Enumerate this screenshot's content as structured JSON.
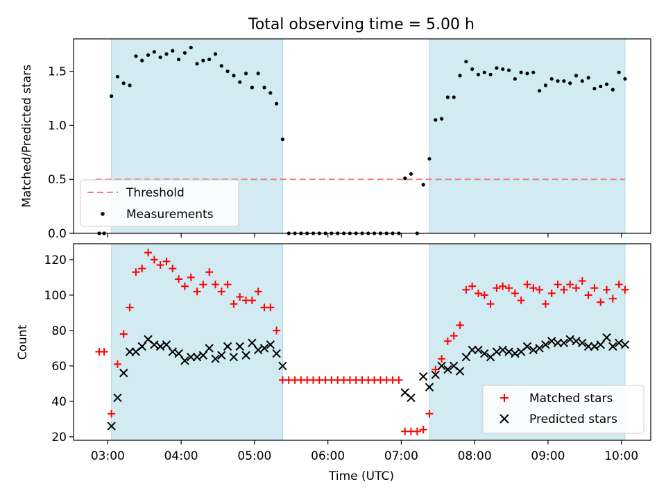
{
  "title": "Total observing time = 5.00 h",
  "colors": {
    "band": "#add8e6",
    "threshold": "#f08080",
    "measurement": "#000000",
    "matched": "#ff0000",
    "predicted": "#000000"
  },
  "chart_data": [
    {
      "type": "scatter",
      "ylabel": "Matched/Predicted stars",
      "xlim": [
        "02:32",
        "10:24"
      ],
      "ylim": [
        0,
        1.8
      ],
      "yticks": [
        0.0,
        0.5,
        1.0,
        1.5
      ],
      "ytick_labels": [
        "0.0",
        "0.5",
        "1.0",
        "1.5"
      ],
      "shaded_intervals": [
        [
          "03:03",
          "05:23"
        ],
        [
          "07:23",
          "10:03"
        ]
      ],
      "threshold": {
        "label": "Threshold",
        "value": 0.5,
        "x_range": [
          "02:50",
          "10:03"
        ]
      },
      "legend": {
        "position": "lower-left",
        "entries": [
          "Threshold",
          "Measurements"
        ]
      },
      "series": [
        {
          "name": "Measurements",
          "marker": "dot",
          "points": [
            [
              "02:53",
              0.0
            ],
            [
              "02:57",
              0.0
            ],
            [
              "03:03",
              1.27
            ],
            [
              "03:08",
              1.45
            ],
            [
              "03:13",
              1.39
            ],
            [
              "03:18",
              1.37
            ],
            [
              "03:23",
              1.64
            ],
            [
              "03:28",
              1.6
            ],
            [
              "03:33",
              1.65
            ],
            [
              "03:38",
              1.68
            ],
            [
              "03:43",
              1.63
            ],
            [
              "03:48",
              1.66
            ],
            [
              "03:53",
              1.69
            ],
            [
              "03:58",
              1.61
            ],
            [
              "04:03",
              1.67
            ],
            [
              "04:08",
              1.72
            ],
            [
              "04:13",
              1.57
            ],
            [
              "04:18",
              1.6
            ],
            [
              "04:23",
              1.61
            ],
            [
              "04:28",
              1.66
            ],
            [
              "04:33",
              1.55
            ],
            [
              "04:38",
              1.5
            ],
            [
              "04:43",
              1.46
            ],
            [
              "04:48",
              1.4
            ],
            [
              "04:53",
              1.48
            ],
            [
              "04:58",
              1.35
            ],
            [
              "05:03",
              1.48
            ],
            [
              "05:08",
              1.35
            ],
            [
              "05:13",
              1.3
            ],
            [
              "05:18",
              1.2
            ],
            [
              "05:23",
              0.87
            ],
            [
              "05:28",
              0.0
            ],
            [
              "05:33",
              0.0
            ],
            [
              "05:38",
              0.0
            ],
            [
              "05:43",
              0.0
            ],
            [
              "05:48",
              0.0
            ],
            [
              "05:53",
              0.0
            ],
            [
              "05:58",
              0.0
            ],
            [
              "06:03",
              0.0
            ],
            [
              "06:08",
              0.0
            ],
            [
              "06:13",
              0.0
            ],
            [
              "06:18",
              0.0
            ],
            [
              "06:23",
              0.0
            ],
            [
              "06:28",
              0.0
            ],
            [
              "06:33",
              0.0
            ],
            [
              "06:38",
              0.0
            ],
            [
              "06:43",
              0.0
            ],
            [
              "06:48",
              0.0
            ],
            [
              "06:53",
              0.0
            ],
            [
              "06:58",
              0.0
            ],
            [
              "07:03",
              0.51
            ],
            [
              "07:08",
              0.55
            ],
            [
              "07:13",
              0.0
            ],
            [
              "07:18",
              0.45
            ],
            [
              "07:23",
              0.69
            ],
            [
              "07:28",
              1.05
            ],
            [
              "07:33",
              1.06
            ],
            [
              "07:38",
              1.26
            ],
            [
              "07:43",
              1.26
            ],
            [
              "07:48",
              1.46
            ],
            [
              "07:53",
              1.59
            ],
            [
              "07:58",
              1.52
            ],
            [
              "08:03",
              1.47
            ],
            [
              "08:08",
              1.49
            ],
            [
              "08:13",
              1.47
            ],
            [
              "08:18",
              1.53
            ],
            [
              "08:23",
              1.52
            ],
            [
              "08:28",
              1.51
            ],
            [
              "08:33",
              1.43
            ],
            [
              "08:38",
              1.49
            ],
            [
              "08:43",
              1.48
            ],
            [
              "08:48",
              1.49
            ],
            [
              "08:53",
              1.32
            ],
            [
              "08:58",
              1.37
            ],
            [
              "09:03",
              1.43
            ],
            [
              "09:08",
              1.41
            ],
            [
              "09:13",
              1.41
            ],
            [
              "09:18",
              1.39
            ],
            [
              "09:23",
              1.46
            ],
            [
              "09:28",
              1.41
            ],
            [
              "09:33",
              1.44
            ],
            [
              "09:38",
              1.34
            ],
            [
              "09:43",
              1.36
            ],
            [
              "09:48",
              1.38
            ],
            [
              "09:53",
              1.33
            ],
            [
              "09:58",
              1.49
            ],
            [
              "10:03",
              1.43
            ]
          ]
        }
      ]
    },
    {
      "type": "scatter",
      "xlabel": "Time (UTC)",
      "ylabel": "Count",
      "xlim": [
        "02:32",
        "10:24"
      ],
      "ylim": [
        18,
        129
      ],
      "xticks": [
        "03:00",
        "04:00",
        "05:00",
        "06:00",
        "07:00",
        "08:00",
        "09:00",
        "10:00"
      ],
      "yticks": [
        20,
        40,
        60,
        80,
        100,
        120
      ],
      "ytick_labels": [
        "20",
        "40",
        "60",
        "80",
        "100",
        "120"
      ],
      "shaded_intervals": [
        [
          "03:03",
          "05:23"
        ],
        [
          "07:23",
          "10:03"
        ]
      ],
      "legend": {
        "position": "lower-right",
        "entries": [
          "Matched stars",
          "Predicted stars"
        ]
      },
      "series": [
        {
          "name": "Matched stars",
          "marker": "plus",
          "points": [
            [
              "02:53",
              68
            ],
            [
              "02:57",
              68
            ],
            [
              "03:03",
              33
            ],
            [
              "03:08",
              61
            ],
            [
              "03:13",
              78
            ],
            [
              "03:18",
              93
            ],
            [
              "03:23",
              113
            ],
            [
              "03:28",
              115
            ],
            [
              "03:33",
              124
            ],
            [
              "03:38",
              120
            ],
            [
              "03:43",
              117
            ],
            [
              "03:48",
              119
            ],
            [
              "03:53",
              115
            ],
            [
              "03:58",
              109
            ],
            [
              "04:03",
              105
            ],
            [
              "04:08",
              110
            ],
            [
              "04:13",
              102
            ],
            [
              "04:18",
              106
            ],
            [
              "04:23",
              113
            ],
            [
              "04:28",
              106
            ],
            [
              "04:33",
              102
            ],
            [
              "04:38",
              106
            ],
            [
              "04:43",
              95
            ],
            [
              "04:48",
              99
            ],
            [
              "04:53",
              97
            ],
            [
              "04:58",
              97
            ],
            [
              "05:03",
              102
            ],
            [
              "05:08",
              93
            ],
            [
              "05:13",
              93
            ],
            [
              "05:18",
              80
            ],
            [
              "05:23",
              52
            ],
            [
              "05:28",
              52
            ],
            [
              "05:33",
              52
            ],
            [
              "05:38",
              52
            ],
            [
              "05:43",
              52
            ],
            [
              "05:48",
              52
            ],
            [
              "05:53",
              52
            ],
            [
              "05:58",
              52
            ],
            [
              "06:03",
              52
            ],
            [
              "06:08",
              52
            ],
            [
              "06:13",
              52
            ],
            [
              "06:18",
              52
            ],
            [
              "06:23",
              52
            ],
            [
              "06:28",
              52
            ],
            [
              "06:33",
              52
            ],
            [
              "06:38",
              52
            ],
            [
              "06:43",
              52
            ],
            [
              "06:48",
              52
            ],
            [
              "06:53",
              52
            ],
            [
              "06:58",
              52
            ],
            [
              "07:03",
              23
            ],
            [
              "07:08",
              23
            ],
            [
              "07:13",
              23
            ],
            [
              "07:18",
              24
            ],
            [
              "07:23",
              33
            ],
            [
              "07:28",
              58
            ],
            [
              "07:33",
              64
            ],
            [
              "07:38",
              74
            ],
            [
              "07:43",
              77
            ],
            [
              "07:48",
              83
            ],
            [
              "07:53",
              103
            ],
            [
              "07:58",
              105
            ],
            [
              "08:03",
              101
            ],
            [
              "08:08",
              100
            ],
            [
              "08:13",
              95
            ],
            [
              "08:18",
              104
            ],
            [
              "08:23",
              105
            ],
            [
              "08:28",
              104
            ],
            [
              "08:33",
              101
            ],
            [
              "08:38",
              97
            ],
            [
              "08:43",
              106
            ],
            [
              "08:48",
              104
            ],
            [
              "08:53",
              103
            ],
            [
              "08:58",
              95
            ],
            [
              "09:03",
              101
            ],
            [
              "09:08",
              106
            ],
            [
              "09:13",
              103
            ],
            [
              "09:18",
              106
            ],
            [
              "09:23",
              104
            ],
            [
              "09:28",
              108
            ],
            [
              "09:33",
              100
            ],
            [
              "09:38",
              104
            ],
            [
              "09:43",
              96
            ],
            [
              "09:48",
              103
            ],
            [
              "09:53",
              98
            ],
            [
              "09:58",
              106
            ],
            [
              "10:03",
              103
            ]
          ]
        },
        {
          "name": "Predicted stars",
          "marker": "x",
          "points": [
            [
              "03:03",
              26
            ],
            [
              "03:08",
              42
            ],
            [
              "03:13",
              56
            ],
            [
              "03:18",
              68
            ],
            [
              "03:23",
              68
            ],
            [
              "03:28",
              71
            ],
            [
              "03:33",
              75
            ],
            [
              "03:38",
              72
            ],
            [
              "03:43",
              71
            ],
            [
              "03:48",
              72
            ],
            [
              "03:53",
              68
            ],
            [
              "03:58",
              67
            ],
            [
              "04:03",
              63
            ],
            [
              "04:08",
              65
            ],
            [
              "04:13",
              65
            ],
            [
              "04:18",
              66
            ],
            [
              "04:23",
              70
            ],
            [
              "04:28",
              64
            ],
            [
              "04:33",
              66
            ],
            [
              "04:38",
              71
            ],
            [
              "04:43",
              65
            ],
            [
              "04:48",
              71
            ],
            [
              "04:53",
              66
            ],
            [
              "04:58",
              73
            ],
            [
              "05:03",
              69
            ],
            [
              "05:08",
              70
            ],
            [
              "05:13",
              72
            ],
            [
              "05:18",
              67
            ],
            [
              "05:23",
              60
            ],
            [
              "07:03",
              45
            ],
            [
              "07:08",
              42
            ],
            [
              "07:18",
              54
            ],
            [
              "07:23",
              48
            ],
            [
              "07:28",
              55
            ],
            [
              "07:33",
              60
            ],
            [
              "07:38",
              58
            ],
            [
              "07:43",
              60
            ],
            [
              "07:48",
              57
            ],
            [
              "07:53",
              65
            ],
            [
              "07:58",
              69
            ],
            [
              "08:03",
              69
            ],
            [
              "08:08",
              67
            ],
            [
              "08:13",
              65
            ],
            [
              "08:18",
              68
            ],
            [
              "08:23",
              69
            ],
            [
              "08:28",
              68
            ],
            [
              "08:33",
              67
            ],
            [
              "08:38",
              68
            ],
            [
              "08:43",
              71
            ],
            [
              "08:48",
              69
            ],
            [
              "08:53",
              70
            ],
            [
              "08:58",
              72
            ],
            [
              "09:03",
              74
            ],
            [
              "09:08",
              73
            ],
            [
              "09:13",
              73
            ],
            [
              "09:18",
              75
            ],
            [
              "09:23",
              74
            ],
            [
              "09:28",
              73
            ],
            [
              "09:33",
              71
            ],
            [
              "09:38",
              71
            ],
            [
              "09:43",
              72
            ],
            [
              "09:48",
              76
            ],
            [
              "09:53",
              71
            ],
            [
              "09:58",
              73
            ],
            [
              "10:03",
              72
            ]
          ]
        }
      ]
    }
  ]
}
